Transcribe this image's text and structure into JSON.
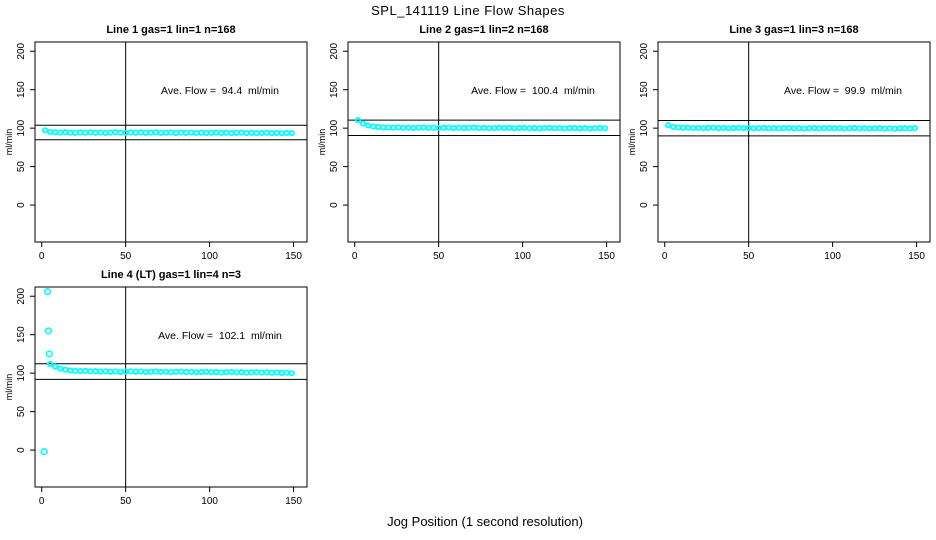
{
  "title": "SPL_141119  Line Flow Shapes",
  "xlabel": "Jog Position (1 second resolution)",
  "accent_color": "#00FFFF",
  "axis_color": "#000000",
  "chart_data": [
    {
      "type": "scatter",
      "title": "Line 1 gas=1 lin=1 n=168",
      "annotation": "Ave. Flow =  94.4  ml/min",
      "ave_flow": 94.4,
      "ylabel": "ml/min",
      "x_ticks": [
        0,
        50,
        100,
        150
      ],
      "y_ticks": [
        0,
        50,
        100,
        150,
        200
      ],
      "xlim": [
        -4,
        158
      ],
      "ylim": [
        -48,
        212
      ],
      "vline_x": 50,
      "hlines": [
        103.8,
        85.0
      ],
      "marker_color": "#00FFFF",
      "x_start": 2,
      "x_step": 3,
      "y_values": [
        97.2,
        95.1,
        94.6,
        94.3,
        94.8,
        94.2,
        93.9,
        94.5,
        94.1,
        94.6,
        94.0,
        94.4,
        93.8,
        94.3,
        94.7,
        94.1,
        93.9,
        94.4,
        94.0,
        94.5,
        93.9,
        94.2,
        94.6,
        93.8,
        94.1,
        94.4,
        93.7,
        94.2,
        93.9,
        94.3,
        93.8,
        94.1,
        93.6,
        94.0,
        94.3,
        93.7,
        94.0,
        93.5,
        93.9,
        94.2,
        93.6,
        93.9,
        93.4,
        93.8,
        94.1,
        93.5,
        93.8,
        93.3,
        93.7,
        93.5
      ],
      "outliers": []
    },
    {
      "type": "scatter",
      "title": "Line 2 gas=1 lin=2 n=168",
      "annotation": "Ave. Flow =  100.4  ml/min",
      "ave_flow": 100.4,
      "ylabel": "ml/min",
      "x_ticks": [
        0,
        50,
        100,
        150
      ],
      "y_ticks": [
        0,
        50,
        100,
        150,
        200
      ],
      "xlim": [
        -4,
        158
      ],
      "ylim": [
        -48,
        212
      ],
      "vline_x": 50,
      "hlines": [
        110.4,
        90.4
      ],
      "marker_color": "#00FFFF",
      "x_start": 2,
      "x_step": 3,
      "y_values": [
        110.5,
        106.0,
        103.5,
        102.2,
        101.5,
        101.0,
        100.8,
        100.6,
        101.0,
        100.4,
        100.7,
        100.2,
        100.6,
        100.9,
        100.3,
        100.6,
        100.1,
        100.5,
        100.8,
        100.2,
        100.5,
        100.0,
        100.4,
        100.7,
        100.1,
        100.4,
        99.9,
        100.3,
        100.6,
        100.0,
        100.3,
        99.8,
        100.2,
        100.5,
        99.9,
        100.2,
        99.7,
        100.1,
        100.4,
        99.8,
        100.1,
        99.6,
        100.0,
        100.3,
        99.7,
        100.0,
        99.5,
        99.9,
        100.2,
        99.8
      ],
      "outliers": []
    },
    {
      "type": "scatter",
      "title": "Line 3 gas=1 lin=3 n=168",
      "annotation": "Ave. Flow =  99.9  ml/min",
      "ave_flow": 99.9,
      "ylabel": "ml/min",
      "x_ticks": [
        0,
        50,
        100,
        150
      ],
      "y_ticks": [
        0,
        50,
        100,
        150,
        200
      ],
      "xlim": [
        -4,
        158
      ],
      "ylim": [
        -48,
        212
      ],
      "vline_x": 50,
      "hlines": [
        109.9,
        89.9
      ],
      "marker_color": "#00FFFF",
      "x_start": 2,
      "x_step": 3,
      "y_values": [
        104.0,
        101.8,
        100.9,
        100.4,
        100.6,
        100.1,
        100.4,
        99.9,
        100.3,
        100.6,
        100.0,
        100.3,
        99.8,
        100.2,
        100.5,
        99.9,
        100.2,
        99.7,
        100.1,
        100.4,
        99.8,
        100.1,
        99.6,
        100.0,
        100.3,
        99.7,
        100.0,
        99.5,
        99.9,
        100.2,
        99.6,
        99.9,
        100.2,
        99.8,
        100.1,
        99.5,
        99.9,
        100.2,
        99.6,
        99.9,
        99.4,
        99.8,
        100.1,
        99.5,
        99.8,
        99.3,
        99.7,
        100.0,
        99.6,
        99.9
      ],
      "outliers": []
    },
    {
      "type": "scatter",
      "title": "Line 4 (LT) gas=1 lin=4 n=3",
      "annotation": "Ave. Flow =  102.1  ml/min",
      "ave_flow": 102.1,
      "ylabel": "ml/min",
      "x_ticks": [
        0,
        50,
        100,
        150
      ],
      "y_ticks": [
        0,
        50,
        100,
        150,
        200
      ],
      "xlim": [
        -4,
        158
      ],
      "ylim": [
        -48,
        212
      ],
      "vline_x": 50,
      "hlines": [
        112.3,
        91.9
      ],
      "marker_color": "#00FFFF",
      "x_start": 5,
      "x_step": 3,
      "y_values": [
        112.0,
        108.5,
        106.0,
        104.5,
        103.5,
        103.0,
        102.6,
        103.0,
        102.2,
        102.6,
        102.0,
        102.4,
        101.8,
        102.2,
        101.6,
        102.0,
        102.4,
        101.8,
        102.1,
        101.5,
        101.9,
        102.2,
        101.6,
        101.9,
        101.3,
        101.7,
        102.0,
        101.4,
        101.7,
        101.1,
        101.5,
        101.8,
        101.2,
        101.5,
        100.9,
        101.3,
        101.6,
        101.0,
        101.3,
        100.7,
        101.1,
        101.4,
        100.8,
        101.1,
        100.5,
        100.9,
        100.2,
        100.6,
        99.8
      ],
      "outliers": [
        [
          3.5,
          206
        ],
        [
          4.0,
          155
        ],
        [
          4.5,
          125
        ],
        [
          1.5,
          -2
        ]
      ]
    }
  ]
}
